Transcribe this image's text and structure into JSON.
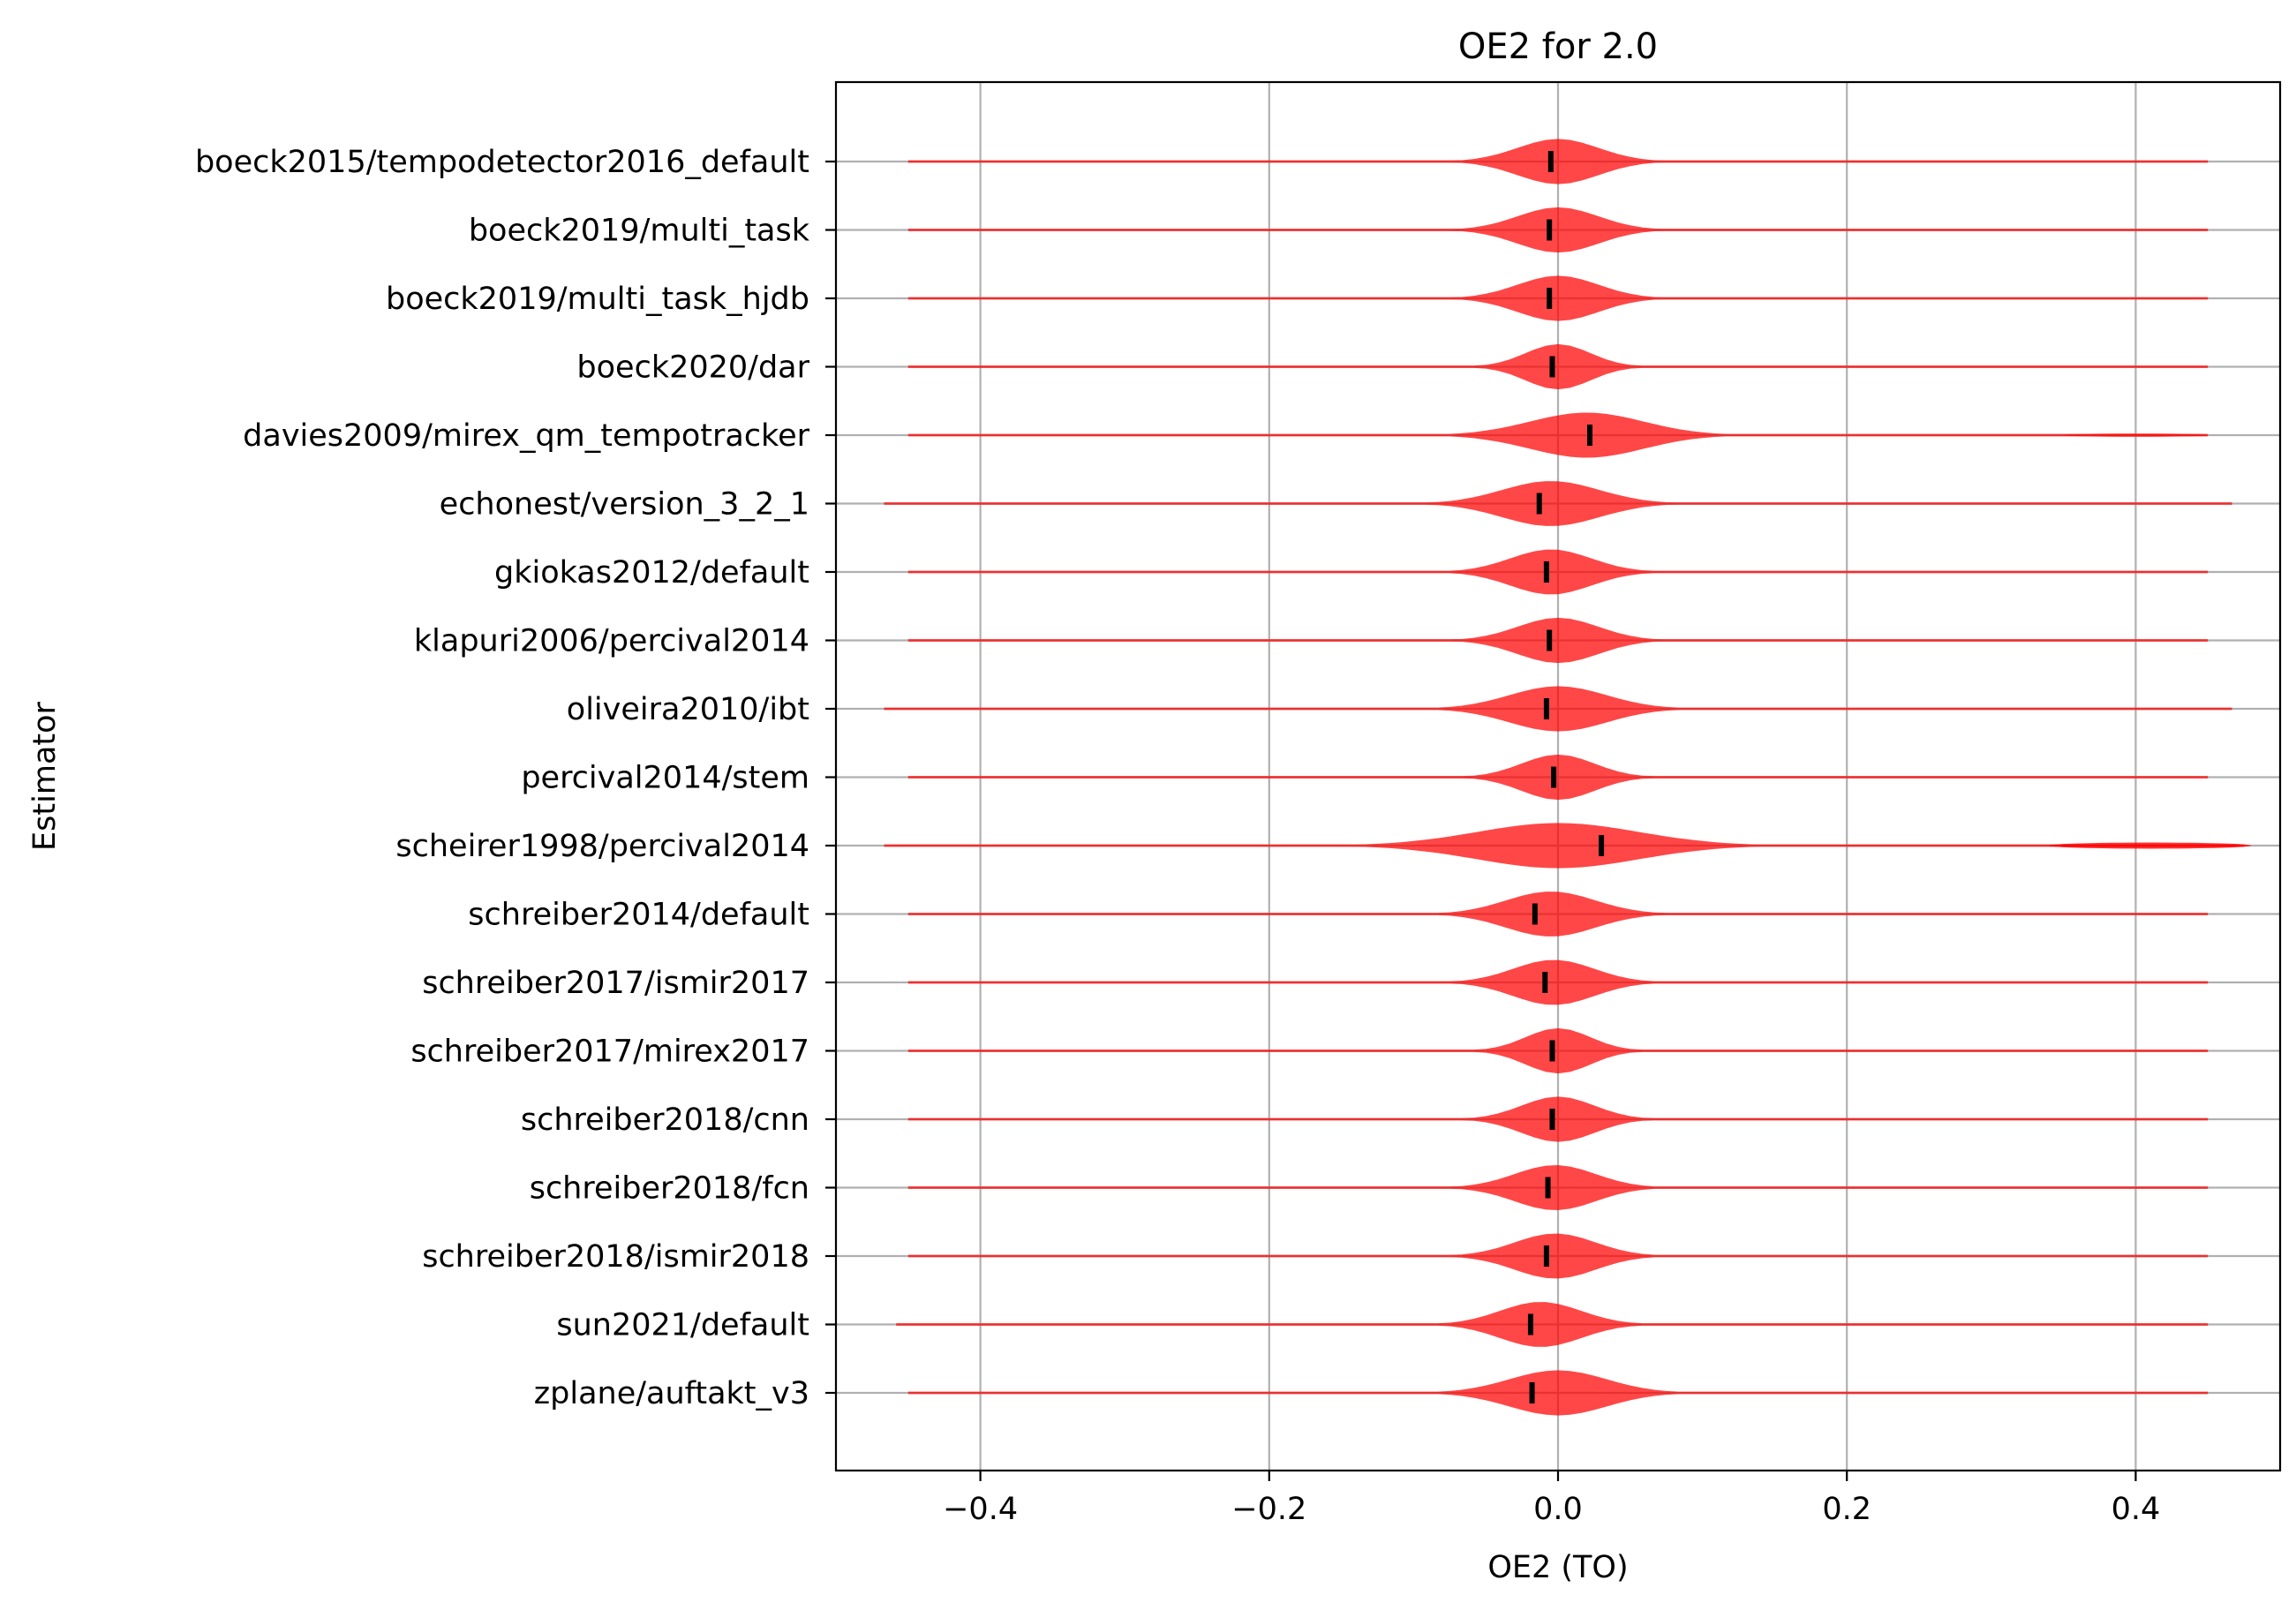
{
  "chart_data": {
    "type": "violin",
    "orientation": "horizontal",
    "title": "OE2 for 2.0",
    "xlabel": "OE2 (TO)",
    "ylabel": "Estimator",
    "xlim": [
      -0.5,
      0.5
    ],
    "xticks": [
      -0.4,
      -0.2,
      0.0,
      0.2,
      0.4
    ],
    "xtick_labels": [
      "−0.4",
      "−0.2",
      "0.0",
      "0.2",
      "0.4"
    ],
    "grid": true,
    "colors": {
      "violin": "#ff0000",
      "median": "#000000",
      "grid": "#b0b0b0"
    },
    "series": [
      {
        "name": "boeck2015/tempodetector2016_default",
        "median": -0.005,
        "peak": 0.0,
        "core_halfwidth": 0.05,
        "tail_extent": [
          -0.45,
          0.45
        ]
      },
      {
        "name": "boeck2019/multi_task",
        "median": -0.006,
        "peak": 0.0,
        "core_halfwidth": 0.05,
        "tail_extent": [
          -0.45,
          0.45
        ]
      },
      {
        "name": "boeck2019/multi_task_hjdb",
        "median": -0.006,
        "peak": 0.0,
        "core_halfwidth": 0.05,
        "tail_extent": [
          -0.45,
          0.45
        ]
      },
      {
        "name": "boeck2020/dar",
        "median": -0.004,
        "peak": 0.0,
        "core_halfwidth": 0.04,
        "tail_extent": [
          -0.45,
          0.45
        ]
      },
      {
        "name": "davies2009/mirex_qm_tempotracker",
        "median": 0.022,
        "peak": 0.02,
        "core_halfwidth": 0.07,
        "tail_extent": [
          -0.45,
          0.45
        ]
      },
      {
        "name": "echonest/version_3_2_1",
        "median": -0.013,
        "peak": -0.005,
        "core_halfwidth": 0.06,
        "tail_extent": [
          -0.47,
          0.47
        ]
      },
      {
        "name": "gkiokas2012/default",
        "median": -0.008,
        "peak": -0.005,
        "core_halfwidth": 0.05,
        "tail_extent": [
          -0.45,
          0.45
        ]
      },
      {
        "name": "klapuri2006/percival2014",
        "median": -0.006,
        "peak": 0.0,
        "core_halfwidth": 0.05,
        "tail_extent": [
          -0.45,
          0.45
        ]
      },
      {
        "name": "oliveira2010/ibt",
        "median": -0.008,
        "peak": 0.0,
        "core_halfwidth": 0.06,
        "tail_extent": [
          -0.47,
          0.47
        ]
      },
      {
        "name": "percival2014/stem",
        "median": -0.003,
        "peak": 0.0,
        "core_halfwidth": 0.045,
        "tail_extent": [
          -0.45,
          0.45
        ]
      },
      {
        "name": "scheirer1998/percival2014",
        "median": 0.03,
        "peak": 0.0,
        "core_halfwidth": 0.1,
        "tail_extent": [
          -0.47,
          0.48
        ]
      },
      {
        "name": "schreiber2014/default",
        "median": -0.016,
        "peak": -0.005,
        "core_halfwidth": 0.055,
        "tail_extent": [
          -0.45,
          0.45
        ]
      },
      {
        "name": "schreiber2017/ismir2017",
        "median": -0.009,
        "peak": -0.003,
        "core_halfwidth": 0.05,
        "tail_extent": [
          -0.45,
          0.45
        ]
      },
      {
        "name": "schreiber2017/mirex2017",
        "median": -0.004,
        "peak": 0.0,
        "core_halfwidth": 0.04,
        "tail_extent": [
          -0.45,
          0.45
        ]
      },
      {
        "name": "schreiber2018/cnn",
        "median": -0.004,
        "peak": 0.0,
        "core_halfwidth": 0.045,
        "tail_extent": [
          -0.45,
          0.45
        ]
      },
      {
        "name": "schreiber2018/fcn",
        "median": -0.007,
        "peak": -0.002,
        "core_halfwidth": 0.05,
        "tail_extent": [
          -0.45,
          0.45
        ]
      },
      {
        "name": "schreiber2018/ismir2018",
        "median": -0.008,
        "peak": -0.002,
        "core_halfwidth": 0.05,
        "tail_extent": [
          -0.45,
          0.45
        ]
      },
      {
        "name": "sun2021/default",
        "median": -0.019,
        "peak": -0.012,
        "core_halfwidth": 0.05,
        "tail_extent": [
          -0.46,
          0.45
        ]
      },
      {
        "name": "zplane/auftakt_v3",
        "median": -0.018,
        "peak": 0.0,
        "core_halfwidth": 0.06,
        "tail_extent": [
          -0.45,
          0.45
        ]
      }
    ]
  }
}
